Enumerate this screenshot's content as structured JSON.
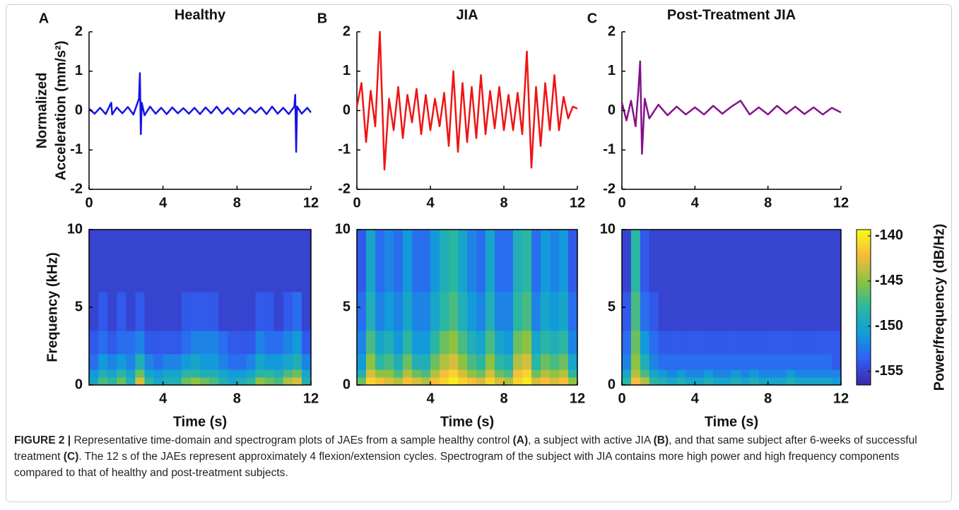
{
  "chart_data": [
    {
      "type": "line",
      "panel": "A",
      "title": "Healthy",
      "ylabel": [
        "Normalized",
        "Acceleration (mm/s²)"
      ],
      "xlim": [
        0,
        12
      ],
      "ylim": [
        -2,
        2
      ],
      "xticks": [
        0,
        4,
        8,
        12
      ],
      "yticks": [
        -2,
        -1,
        0,
        1,
        2
      ],
      "x": [
        0,
        0.3,
        0.6,
        0.9,
        1.2,
        1.25,
        1.5,
        1.8,
        2.1,
        2.4,
        2.7,
        2.75,
        2.8,
        2.85,
        3.0,
        3.3,
        3.6,
        3.9,
        4.2,
        4.5,
        4.8,
        5.1,
        5.4,
        5.7,
        6.0,
        6.3,
        6.6,
        6.9,
        7.2,
        7.5,
        7.8,
        8.1,
        8.4,
        8.7,
        9.0,
        9.3,
        9.6,
        9.9,
        10.2,
        10.5,
        10.8,
        11.1,
        11.15,
        11.2,
        11.25,
        11.5,
        11.8,
        12
      ],
      "series": [
        {
          "color": "#1414e6",
          "values": [
            0.05,
            -0.08,
            0.07,
            -0.09,
            0.2,
            -0.1,
            0.08,
            -0.07,
            0.09,
            -0.1,
            0.3,
            0.95,
            -0.6,
            0.2,
            -0.12,
            0.1,
            -0.08,
            0.07,
            -0.09,
            0.08,
            -0.07,
            0.06,
            -0.08,
            0.07,
            -0.09,
            0.08,
            -0.07,
            0.1,
            -0.08,
            0.07,
            -0.09,
            0.06,
            -0.08,
            0.07,
            -0.06,
            0.08,
            -0.09,
            0.1,
            -0.08,
            0.07,
            -0.09,
            0.1,
            0.4,
            -1.05,
            0.1,
            -0.08,
            0.07,
            -0.05
          ]
        }
      ]
    },
    {
      "type": "line",
      "panel": "B",
      "title": "JIA",
      "xlim": [
        0,
        12
      ],
      "ylim": [
        -2,
        2
      ],
      "xticks": [
        0,
        4,
        8,
        12
      ],
      "yticks": [
        -2,
        -1,
        0,
        1,
        2
      ],
      "x": [
        0,
        0.25,
        0.5,
        0.75,
        1,
        1.25,
        1.5,
        1.75,
        2,
        2.25,
        2.5,
        2.75,
        3,
        3.25,
        3.5,
        3.75,
        4,
        4.25,
        4.5,
        4.75,
        5,
        5.25,
        5.5,
        5.75,
        6,
        6.25,
        6.5,
        6.75,
        7,
        7.25,
        7.5,
        7.75,
        8,
        8.25,
        8.5,
        8.75,
        9,
        9.25,
        9.5,
        9.75,
        10,
        10.25,
        10.5,
        10.75,
        11,
        11.25,
        11.5,
        11.75,
        12
      ],
      "series": [
        {
          "color": "#f01414",
          "values": [
            0.1,
            0.7,
            -0.8,
            0.5,
            -0.4,
            2.0,
            -1.5,
            0.3,
            -0.5,
            0.6,
            -0.7,
            0.4,
            -0.3,
            0.55,
            -0.6,
            0.4,
            -0.5,
            0.3,
            -0.4,
            0.45,
            -0.9,
            1.0,
            -1.05,
            0.7,
            -0.8,
            0.6,
            -0.7,
            0.9,
            -0.6,
            0.5,
            -0.45,
            0.6,
            -0.5,
            0.4,
            -0.5,
            0.45,
            -0.6,
            1.5,
            -1.45,
            0.6,
            -0.9,
            0.7,
            -0.5,
            0.9,
            -0.5,
            0.35,
            -0.2,
            0.1,
            0.05
          ]
        }
      ]
    },
    {
      "type": "line",
      "panel": "C",
      "title": "Post-Treatment JIA",
      "xlim": [
        0,
        12
      ],
      "ylim": [
        -2,
        2
      ],
      "xticks": [
        0,
        4,
        8,
        12
      ],
      "yticks": [
        -2,
        -1,
        0,
        1,
        2
      ],
      "x": [
        0,
        0.25,
        0.5,
        0.75,
        0.9,
        1.0,
        1.1,
        1.25,
        1.5,
        2,
        2.5,
        3,
        3.5,
        4,
        4.5,
        5,
        5.5,
        6,
        6.5,
        7,
        7.5,
        8,
        8.5,
        9,
        9.5,
        10,
        10.5,
        11,
        11.5,
        12
      ],
      "series": [
        {
          "color": "#85108a",
          "values": [
            0.2,
            -0.25,
            0.25,
            -0.4,
            0.5,
            1.25,
            -1.1,
            0.3,
            -0.2,
            0.15,
            -0.12,
            0.1,
            -0.1,
            0.08,
            -0.1,
            0.12,
            -0.08,
            0.1,
            0.25,
            -0.1,
            0.08,
            -0.1,
            0.12,
            -0.08,
            0.1,
            -0.09,
            0.08,
            -0.1,
            0.07,
            -0.05
          ]
        }
      ]
    },
    {
      "type": "heatmap",
      "xlabel": "Time (s)",
      "ylabel": "Frequency (kHz)",
      "xlim": [
        0,
        12
      ],
      "ylim": [
        0,
        10
      ],
      "xticks": [
        4,
        8,
        12
      ],
      "yticks": [
        0,
        5,
        10
      ],
      "time_bins": [
        0,
        0.5,
        1,
        1.5,
        2,
        2.5,
        3,
        3.5,
        4,
        4.5,
        5,
        5.5,
        6,
        6.5,
        7,
        7.5,
        8,
        8.5,
        9,
        9.5,
        10,
        10.5,
        11,
        11.5,
        12
      ],
      "frequency_bins": [
        0,
        0.5,
        1,
        2,
        3.5,
        6,
        10
      ],
      "clim": [
        -156.5,
        -139.3
      ],
      "colormap": [
        "#3e26a8",
        "#2f60f4",
        "#109fd9",
        "#2bb7a0",
        "#8cc340",
        "#f6ba3d",
        "#f9fb15"
      ],
      "z": [
        [
          -150,
          -147,
          -148,
          -146,
          -149,
          -143,
          -148,
          -150,
          -149,
          -149,
          -146,
          -145,
          -146,
          -147,
          -149,
          -150,
          -149,
          -148,
          -145,
          -146,
          -147,
          -144,
          -143,
          -149
        ],
        [
          -151,
          -149,
          -150,
          -148,
          -150,
          -146,
          -150,
          -151,
          -150,
          -150,
          -148,
          -148,
          -149,
          -149,
          -150,
          -151,
          -151,
          -150,
          -148,
          -148,
          -149,
          -147,
          -146,
          -150
        ],
        [
          -153,
          -151,
          -152,
          -151,
          -152,
          -149,
          -152,
          -153,
          -152,
          -152,
          -151,
          -150,
          -151,
          -151,
          -152,
          -153,
          -153,
          -152,
          -150,
          -151,
          -151,
          -150,
          -149,
          -152
        ],
        [
          -154,
          -153,
          -154,
          -153,
          -153,
          -152,
          -154,
          -154,
          -154,
          -154,
          -153,
          -152,
          -152,
          -152,
          -153,
          -154,
          -154,
          -154,
          -152,
          -153,
          -153,
          -152,
          -151,
          -154
        ],
        [
          -155,
          -154,
          -155,
          -154,
          -155,
          -154,
          -155,
          -155,
          -155,
          -155,
          -154,
          -154,
          -154,
          -154,
          -155,
          -155,
          -155,
          -155,
          -154,
          -154,
          -155,
          -154,
          -153,
          -155
        ],
        [
          -155,
          -155,
          -155,
          -155,
          -155,
          -155,
          -155,
          -155,
          -155,
          -155,
          -155,
          -155,
          -155,
          -155,
          -155,
          -155,
          -155,
          -155,
          -155,
          -155,
          -155,
          -155,
          -155,
          -155
        ]
      ]
    },
    {
      "type": "heatmap",
      "xlabel": "Time (s)",
      "xlim": [
        0,
        12
      ],
      "ylim": [
        0,
        10
      ],
      "xticks": [
        4,
        8,
        12
      ],
      "yticks": [
        0,
        5,
        10
      ],
      "time_bins": [
        0,
        0.5,
        1,
        1.5,
        2,
        2.5,
        3,
        3.5,
        4,
        4.5,
        5,
        5.5,
        6,
        6.5,
        7,
        7.5,
        8,
        8.5,
        9,
        9.5,
        10,
        10.5,
        11,
        11.5,
        12
      ],
      "frequency_bins": [
        0,
        0.5,
        1,
        2,
        3.5,
        6,
        10
      ],
      "clim": [
        -156.5,
        -139.3
      ],
      "colormap": [
        "#3e26a8",
        "#2f60f4",
        "#109fd9",
        "#2bb7a0",
        "#8cc340",
        "#f6ba3d",
        "#f9fb15"
      ],
      "z": [
        [
          -146,
          -141,
          -142,
          -143,
          -144,
          -142,
          -143,
          -144,
          -142,
          -141,
          -140,
          -141,
          -142,
          -143,
          -141,
          -143,
          -144,
          -141,
          -140,
          -143,
          -142,
          -143,
          -142,
          -145
        ],
        [
          -149,
          -143,
          -145,
          -145,
          -147,
          -144,
          -146,
          -147,
          -144,
          -142,
          -141,
          -143,
          -145,
          -146,
          -143,
          -146,
          -147,
          -142,
          -141,
          -146,
          -144,
          -145,
          -144,
          -148
        ],
        [
          -151,
          -145,
          -148,
          -147,
          -149,
          -146,
          -149,
          -149,
          -146,
          -144,
          -143,
          -145,
          -147,
          -148,
          -145,
          -148,
          -149,
          -144,
          -143,
          -148,
          -146,
          -147,
          -146,
          -150
        ],
        [
          -152,
          -147,
          -150,
          -149,
          -151,
          -148,
          -151,
          -151,
          -148,
          -146,
          -145,
          -147,
          -149,
          -150,
          -147,
          -150,
          -151,
          -146,
          -145,
          -150,
          -148,
          -149,
          -148,
          -152
        ],
        [
          -153,
          -149,
          -152,
          -151,
          -152,
          -150,
          -152,
          -152,
          -150,
          -148,
          -147,
          -149,
          -151,
          -152,
          -149,
          -152,
          -152,
          -148,
          -147,
          -152,
          -150,
          -151,
          -150,
          -153
        ],
        [
          -154,
          -150,
          -153,
          -152,
          -153,
          -151,
          -153,
          -153,
          -151,
          -149,
          -148,
          -150,
          -152,
          -153,
          -150,
          -153,
          -153,
          -149,
          -148,
          -153,
          -151,
          -152,
          -151,
          -154
        ]
      ]
    },
    {
      "type": "heatmap",
      "xlabel": "Time (s)",
      "xlim": [
        0,
        12
      ],
      "ylim": [
        0,
        10
      ],
      "xticks": [
        0,
        4,
        8,
        12
      ],
      "yticks": [
        0,
        5,
        10
      ],
      "time_bins": [
        0,
        0.5,
        1,
        1.5,
        2,
        2.5,
        3,
        3.5,
        4,
        4.5,
        5,
        5.5,
        6,
        6.5,
        7,
        7.5,
        8,
        8.5,
        9,
        9.5,
        10,
        10.5,
        11,
        11.5,
        12
      ],
      "frequency_bins": [
        0,
        0.5,
        1,
        2,
        3.5,
        6,
        10
      ],
      "clim": [
        -156.5,
        -139.3
      ],
      "colormap": [
        "#3e26a8",
        "#2f60f4",
        "#109fd9",
        "#2bb7a0",
        "#8cc340",
        "#f6ba3d",
        "#f9fb15"
      ],
      "colorbar": {
        "label": "Power/frequency (dB/Hz)",
        "ticks": [
          -140,
          -145,
          -150,
          -155
        ]
      },
      "z": [
        [
          -148,
          -142,
          -144,
          -148,
          -149,
          -150,
          -149,
          -150,
          -150,
          -149,
          -150,
          -150,
          -149,
          -150,
          -149,
          -150,
          -150,
          -150,
          -149,
          -150,
          -150,
          -150,
          -150,
          -151
        ],
        [
          -150,
          -144,
          -147,
          -150,
          -151,
          -152,
          -151,
          -152,
          -152,
          -151,
          -152,
          -152,
          -151,
          -152,
          -151,
          -152,
          -152,
          -152,
          -151,
          -152,
          -152,
          -152,
          -152,
          -152
        ],
        [
          -152,
          -145,
          -149,
          -152,
          -153,
          -153,
          -153,
          -153,
          -153,
          -153,
          -153,
          -153,
          -153,
          -153,
          -153,
          -153,
          -153,
          -153,
          -153,
          -153,
          -153,
          -153,
          -153,
          -154
        ],
        [
          -153,
          -146,
          -151,
          -153,
          -154,
          -154,
          -154,
          -154,
          -154,
          -154,
          -154,
          -154,
          -154,
          -154,
          -154,
          -154,
          -154,
          -154,
          -154,
          -154,
          -154,
          -154,
          -154,
          -154
        ],
        [
          -154,
          -147,
          -153,
          -154,
          -155,
          -155,
          -155,
          -155,
          -155,
          -155,
          -155,
          -155,
          -155,
          -155,
          -155,
          -155,
          -155,
          -155,
          -155,
          -155,
          -155,
          -155,
          -155,
          -155
        ],
        [
          -155,
          -148,
          -154,
          -155,
          -155,
          -155,
          -155,
          -155,
          -155,
          -155,
          -155,
          -155,
          -155,
          -155,
          -155,
          -155,
          -155,
          -155,
          -155,
          -155,
          -155,
          -155,
          -155,
          -155
        ]
      ]
    }
  ],
  "caption": {
    "label": "FIGURE 2 |",
    "segments": [
      " Representative time-domain and spectrogram plots of JAEs from a sample healthy control ",
      "(A)",
      ", a subject with active JIA ",
      "(B)",
      ", and that same subject after 6-weeks of successful treatment ",
      "(C)",
      ". The 12 s of the JAEs represent approximately 4 flexion/extension cycles. Spectrogram of the subject with JIA contains more high power and high frequency components compared to that of healthy and post-treatment subjects."
    ]
  }
}
